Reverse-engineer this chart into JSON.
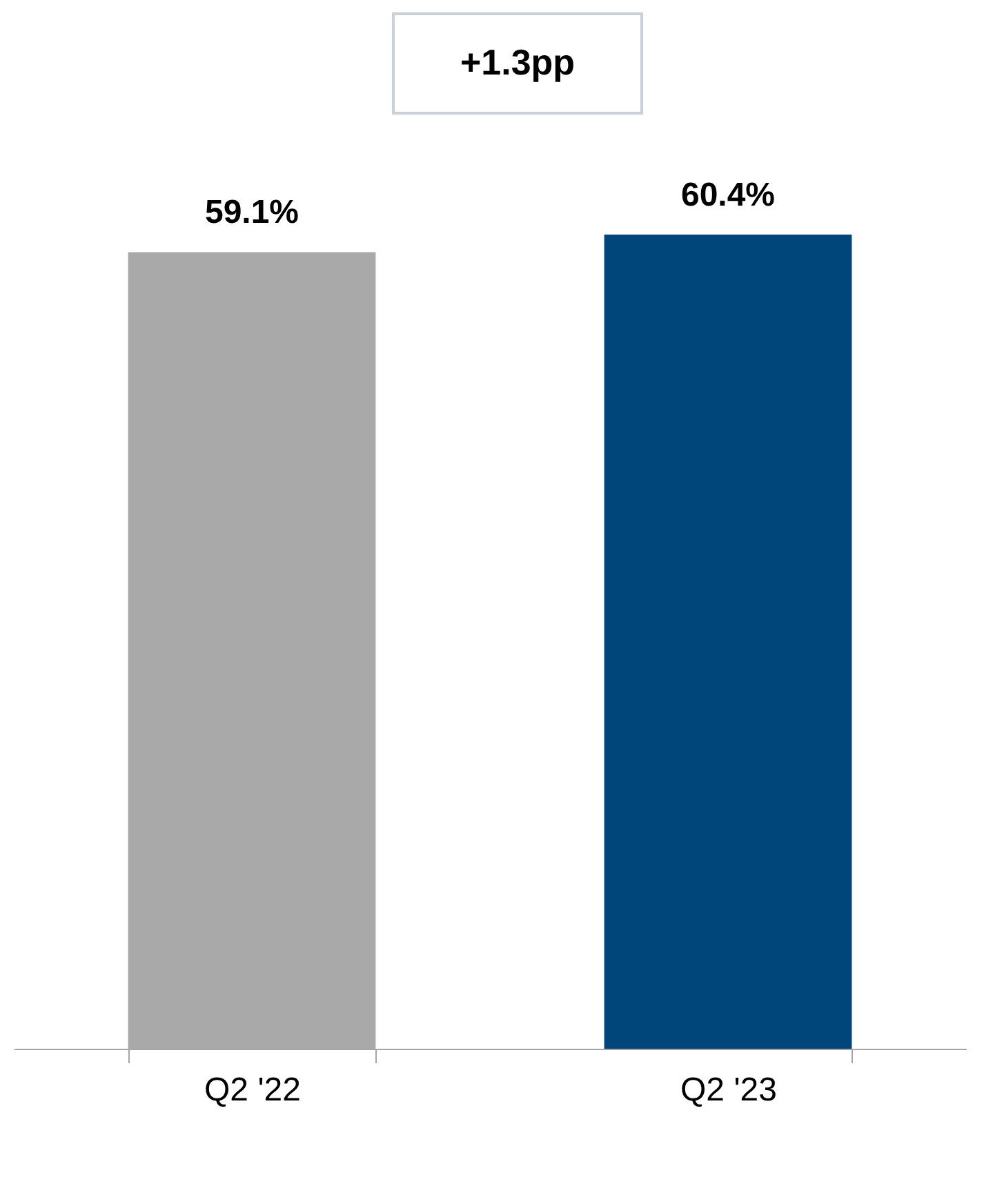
{
  "chart_data": {
    "type": "bar",
    "categories": [
      "Q2 '22",
      "Q2 '23"
    ],
    "values": [
      59.1,
      60.4
    ],
    "value_labels": [
      "59.1%",
      "60.4%"
    ],
    "colors": [
      "#a9a9a9",
      "#00467a"
    ],
    "annotations": [
      "+1.3pp"
    ],
    "grid": false,
    "legend": false
  }
}
